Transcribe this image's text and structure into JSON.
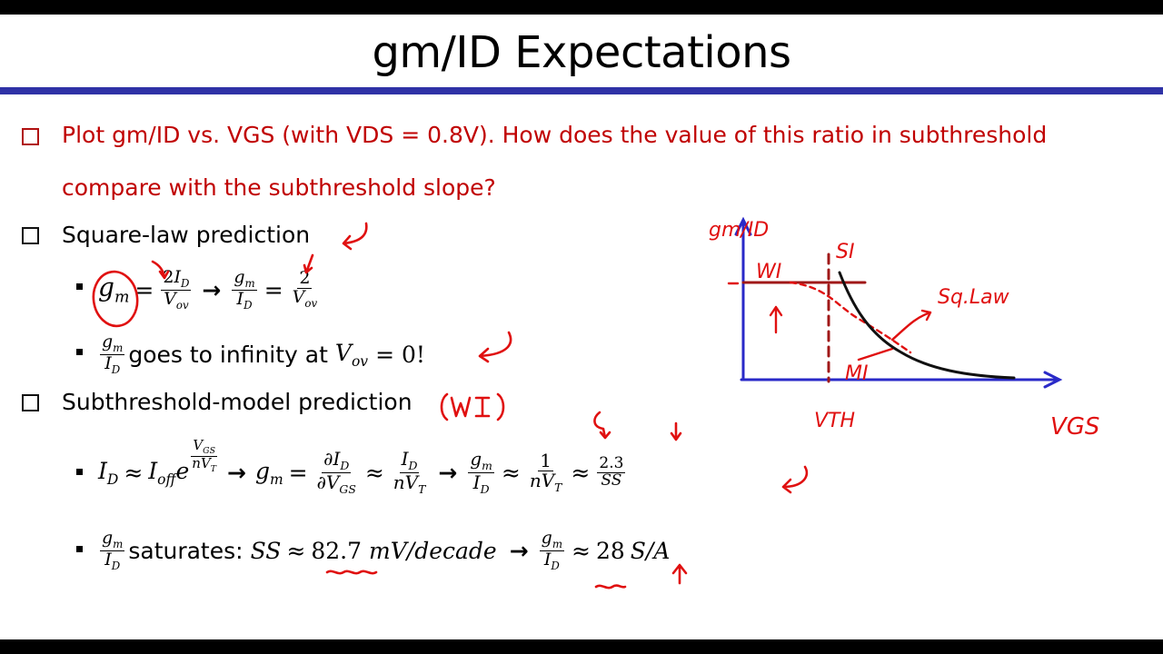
{
  "title": "gm/ID Expectations",
  "bullet1": {
    "line1": "Plot gm/ID vs. VGS (with VDS = 0.8V). How does the value of this ratio in subthreshold",
    "line2": "compare with the subthreshold slope?"
  },
  "bullet2": {
    "label": "Square-law prediction",
    "sub2_text_a": "goes to infinity at",
    "sub2_text_b": "= 0!"
  },
  "bullet3": {
    "label": "Subthreshold-model prediction",
    "annotation": "(WI)",
    "sub2_text_a": "saturates:",
    "ss_value": "82.7",
    "ss_unit": "mV/decade",
    "gm_id_value": "28",
    "gm_id_unit": "S/A"
  },
  "sketch": {
    "y_label": "gm/ID",
    "x_label": "VGS",
    "vth_label": "VTH",
    "wi_label": "WI",
    "mi_label": "MI",
    "si_label": "SI",
    "sqlaw_label": "Sq.Law"
  },
  "colors": {
    "rule": "#2f32a6",
    "red_text": "#c00000",
    "ink_red": "#e01010",
    "axis_blue": "#2a2ac8",
    "dark_red": "#a01818"
  }
}
